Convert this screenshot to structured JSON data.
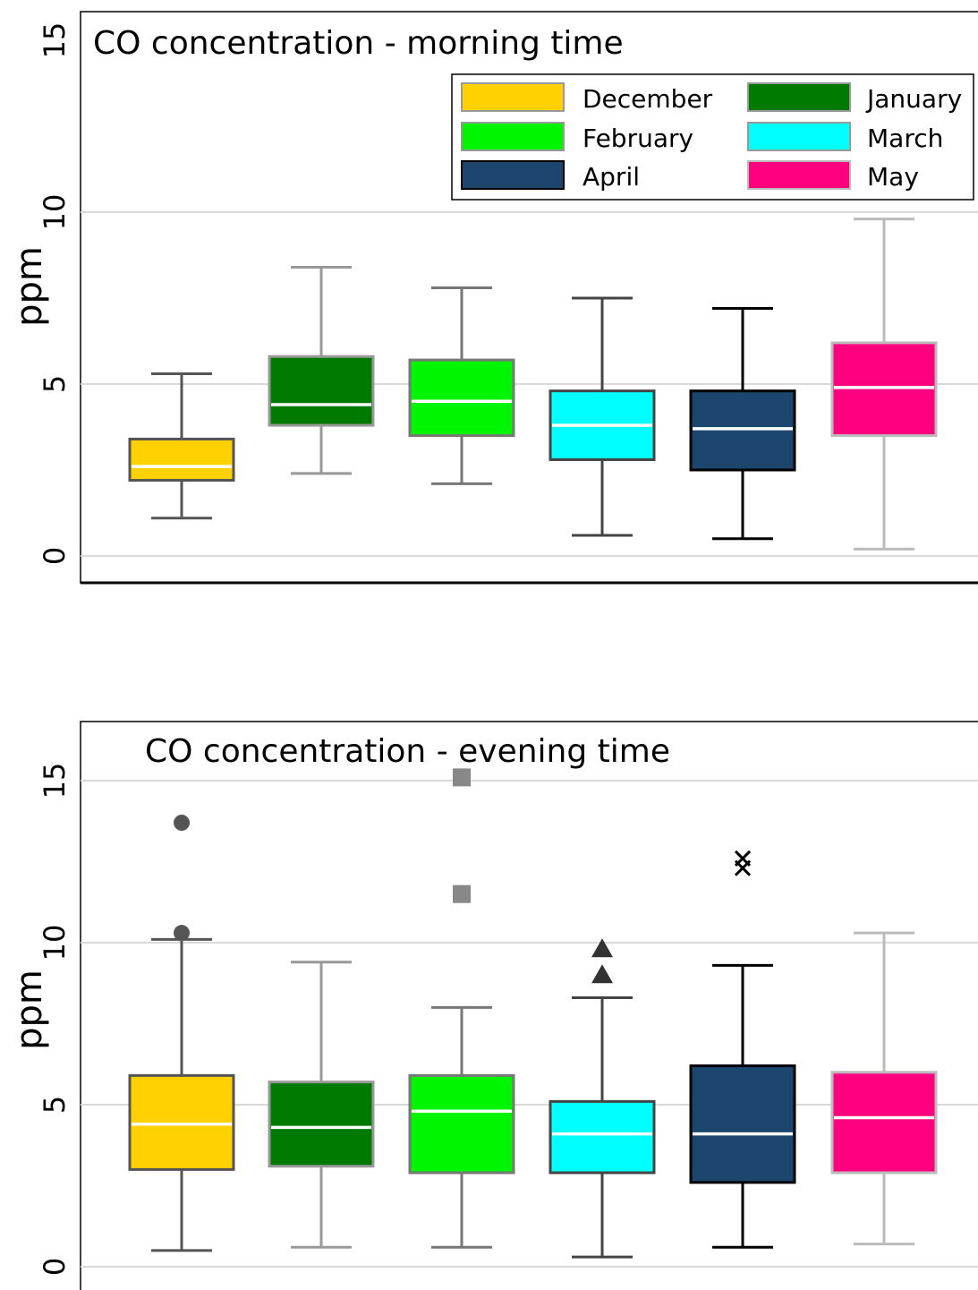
{
  "charts": [
    {
      "title": "CO concentration - morning time",
      "ylabel": "ppm",
      "legend": [
        {
          "label": "December",
          "color": "#FFD100"
        },
        {
          "label": "January",
          "color": "#007A00"
        },
        {
          "label": "February",
          "color": "#00F500"
        },
        {
          "label": "March",
          "color": "#00FFFF"
        },
        {
          "label": "April",
          "color": "#1C466E"
        },
        {
          "label": "May",
          "color": "#FF007F"
        }
      ]
    },
    {
      "title": "CO concentration - evening time",
      "ylabel": "ppm"
    }
  ],
  "chart_data": [
    {
      "type": "box",
      "title": "CO concentration - morning time",
      "ylabel": "ppm",
      "ylim": [
        0,
        15
      ],
      "yticks": [
        "0",
        "5",
        "10",
        "15"
      ],
      "grid": true,
      "legend_position": "top-right",
      "series": [
        {
          "name": "December",
          "color": "#FFD100",
          "whisker_color": "#555555",
          "whisker_low": 1.1,
          "q1": 2.2,
          "median": 2.6,
          "q3": 3.4,
          "whisker_high": 5.3,
          "outliers": []
        },
        {
          "name": "January",
          "color": "#007A00",
          "whisker_color": "#999999",
          "whisker_low": 2.4,
          "q1": 3.8,
          "median": 4.4,
          "q3": 5.8,
          "whisker_high": 8.4,
          "outliers": []
        },
        {
          "name": "February",
          "color": "#00F500",
          "whisker_color": "#777777",
          "whisker_low": 2.1,
          "q1": 3.5,
          "median": 4.5,
          "q3": 5.7,
          "whisker_high": 7.8,
          "outliers": []
        },
        {
          "name": "March",
          "color": "#00FFFF",
          "whisker_color": "#444444",
          "whisker_low": 0.6,
          "q1": 2.8,
          "median": 3.8,
          "q3": 4.8,
          "whisker_high": 7.5,
          "outliers": []
        },
        {
          "name": "April",
          "color": "#1C466E",
          "whisker_color": "#000000",
          "whisker_low": 0.5,
          "q1": 2.5,
          "median": 3.7,
          "q3": 4.8,
          "whisker_high": 7.2,
          "outliers": []
        },
        {
          "name": "May",
          "color": "#FF007F",
          "whisker_color": "#BBBBBB",
          "whisker_low": 0.2,
          "q1": 3.5,
          "median": 4.9,
          "q3": 6.2,
          "whisker_high": 9.8,
          "outliers": []
        }
      ]
    },
    {
      "type": "box",
      "title": "CO concentration - evening time",
      "ylabel": "ppm",
      "ylim": [
        0,
        15
      ],
      "yticks": [
        "0",
        "5",
        "10",
        "15"
      ],
      "grid": true,
      "series": [
        {
          "name": "December",
          "color": "#FFD100",
          "whisker_color": "#555555",
          "whisker_low": 0.5,
          "q1": 3.0,
          "median": 4.4,
          "q3": 5.9,
          "whisker_high": 10.1,
          "outliers": [
            10.3,
            13.7
          ],
          "outlier_marker": "circle",
          "outlier_color": "#555555"
        },
        {
          "name": "January",
          "color": "#007A00",
          "whisker_color": "#999999",
          "whisker_low": 0.6,
          "q1": 3.1,
          "median": 4.3,
          "q3": 5.7,
          "whisker_high": 9.4,
          "outliers": []
        },
        {
          "name": "February",
          "color": "#00F500",
          "whisker_color": "#777777",
          "whisker_low": 0.6,
          "q1": 2.9,
          "median": 4.8,
          "q3": 5.9,
          "whisker_high": 8.0,
          "outliers": [
            11.5,
            15.1
          ],
          "outlier_marker": "square",
          "outlier_color": "#888888"
        },
        {
          "name": "March",
          "color": "#00FFFF",
          "whisker_color": "#444444",
          "whisker_low": 0.3,
          "q1": 2.9,
          "median": 4.1,
          "q3": 5.1,
          "whisker_high": 8.3,
          "outliers": [
            9.0,
            9.8
          ],
          "outlier_marker": "triangle",
          "outlier_color": "#333333"
        },
        {
          "name": "April",
          "color": "#1C466E",
          "whisker_color": "#000000",
          "whisker_low": 0.6,
          "q1": 2.6,
          "median": 4.1,
          "q3": 6.2,
          "whisker_high": 9.3,
          "outliers": [
            12.3,
            12.6
          ],
          "outlier_marker": "x",
          "outlier_color": "#000000"
        },
        {
          "name": "May",
          "color": "#FF007F",
          "whisker_color": "#BBBBBB",
          "whisker_low": 0.7,
          "q1": 2.9,
          "median": 4.6,
          "q3": 6.0,
          "whisker_high": 10.3,
          "outliers": []
        }
      ]
    }
  ]
}
